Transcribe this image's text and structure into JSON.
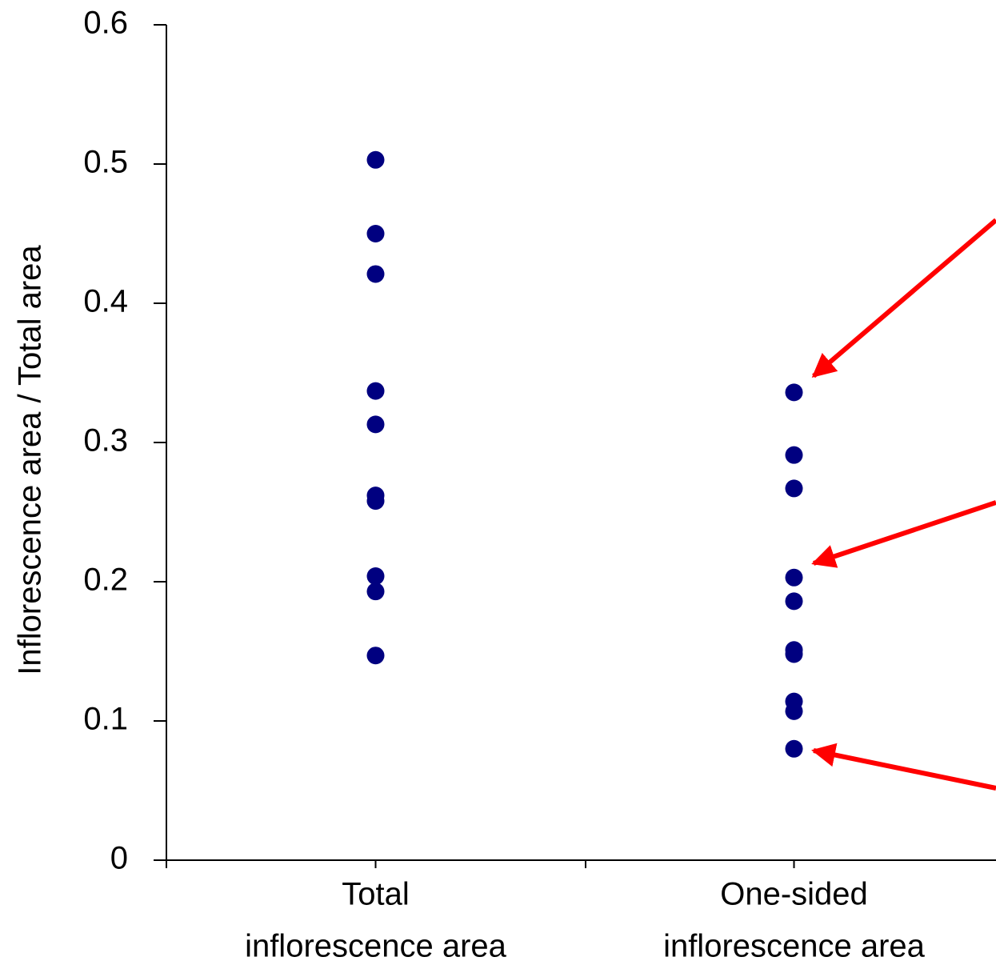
{
  "chart_data": {
    "type": "strip",
    "y_label": "Inflorescence area / Total area",
    "categories": [
      [
        "Total",
        "inflorescence area"
      ],
      [
        "One-sided",
        "inflorescence area"
      ]
    ],
    "values": [
      [
        0.503,
        0.45,
        0.421,
        0.337,
        0.313,
        0.262,
        0.258,
        0.204,
        0.193,
        0.147
      ],
      [
        0.336,
        0.291,
        0.267,
        0.203,
        0.186,
        0.151,
        0.148,
        0.114,
        0.107,
        0.08
      ]
    ],
    "color": "#000080",
    "ylim": [
      0,
      0.6
    ],
    "yticks": [
      0,
      0.1,
      0.2,
      0.3,
      0.4,
      0.5,
      0.6
    ]
  }
}
